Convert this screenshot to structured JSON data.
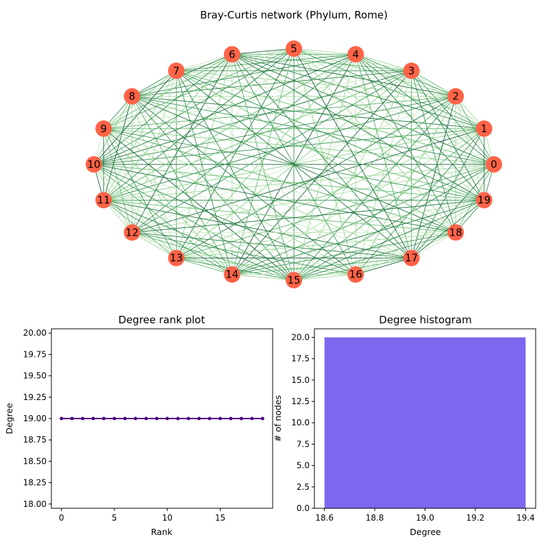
{
  "chart_data": [
    {
      "type": "network",
      "title": "Bray-Curtis network (Phylum, Rome)",
      "layout": "circular",
      "nodes": [
        "0",
        "1",
        "2",
        "3",
        "4",
        "5",
        "6",
        "7",
        "8",
        "9",
        "10",
        "11",
        "12",
        "13",
        "14",
        "15",
        "16",
        "17",
        "18",
        "19"
      ],
      "edges": "complete",
      "node_color": "#ff6347",
      "edge_colormap": "greens"
    },
    {
      "type": "line",
      "title": "Degree rank plot",
      "xlabel": "Rank",
      "ylabel": "Degree",
      "x": [
        0,
        1,
        2,
        3,
        4,
        5,
        6,
        7,
        8,
        9,
        10,
        11,
        12,
        13,
        14,
        15,
        16,
        17,
        18,
        19
      ],
      "y": [
        19,
        19,
        19,
        19,
        19,
        19,
        19,
        19,
        19,
        19,
        19,
        19,
        19,
        19,
        19,
        19,
        19,
        19,
        19,
        19
      ],
      "xlim": [
        -0.95,
        19.95
      ],
      "ylim": [
        17.95,
        20.05
      ],
      "xticks": [
        "0",
        "5",
        "10",
        "15"
      ],
      "yticks": [
        "18.00",
        "18.25",
        "18.50",
        "18.75",
        "19.00",
        "19.25",
        "19.50",
        "19.75",
        "20.00"
      ],
      "color": "#4b0082",
      "marker": "dot"
    },
    {
      "type": "bar",
      "title": "Degree histogram",
      "xlabel": "Degree",
      "ylabel": "# of nodes",
      "x": [
        19
      ],
      "values": [
        20
      ],
      "bar_width": 0.8,
      "xlim": [
        18.56,
        19.44
      ],
      "ylim": [
        0,
        21
      ],
      "xticks": [
        "18.6",
        "18.8",
        "19.0",
        "19.2",
        "19.4"
      ],
      "yticks": [
        "0.0",
        "2.5",
        "5.0",
        "7.5",
        "10.0",
        "12.5",
        "15.0",
        "17.5",
        "20.0"
      ],
      "color": "#7b68ee"
    }
  ]
}
